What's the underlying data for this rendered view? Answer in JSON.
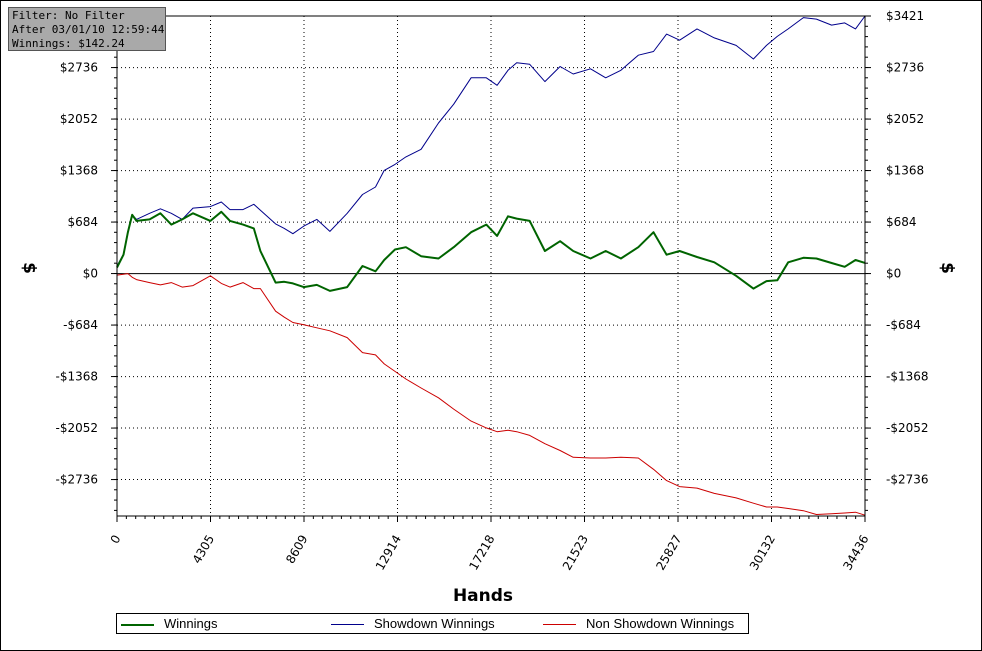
{
  "info_box": {
    "filter": "Filter: No Filter",
    "after": "After 03/01/10 12:59:44",
    "winnings": "Winnings: $142.24"
  },
  "chart_data": {
    "type": "line",
    "xlabel": "Hands",
    "ylabel_left": "$",
    "ylabel_right": "$",
    "xlim": [
      0,
      34436
    ],
    "ylim": [
      -3220,
      3421
    ],
    "x_ticks": [
      0,
      4305,
      8609,
      12914,
      17218,
      21523,
      25827,
      30132,
      34436
    ],
    "x_tick_labels": [
      "0",
      "4305",
      "8609",
      "12914",
      "17218",
      "21523",
      "25827",
      "30132",
      "34436"
    ],
    "y_ticks": [
      3421,
      2736,
      2052,
      1368,
      684,
      0,
      -684,
      -1368,
      -2052,
      -2736
    ],
    "y_tick_labels": [
      "$3421",
      "$2736",
      "$2052",
      "$1368",
      "$684",
      "$0",
      "-$684",
      "-$1368",
      "-$2052",
      "-$2736"
    ],
    "left_y_tick_labels_shown": [
      "$2736",
      "$2052",
      "$1368",
      "$684",
      "$0",
      "-$684",
      "-$1368",
      "-$2052",
      "-$2736"
    ],
    "grid": true,
    "legend_position": "bottom",
    "x": [
      0,
      300,
      500,
      700,
      900,
      1500,
      2000,
      2500,
      3000,
      3500,
      4300,
      4800,
      5200,
      5800,
      6300,
      6600,
      7300,
      7700,
      8100,
      8600,
      9200,
      9800,
      10600,
      11300,
      11900,
      12300,
      12800,
      13300,
      14000,
      14800,
      15500,
      16300,
      17000,
      17500,
      18000,
      18400,
      19000,
      19700,
      20400,
      21000,
      21800,
      22500,
      23200,
      24000,
      24700,
      25300,
      25900,
      26700,
      27500,
      28500,
      29300,
      29900,
      30400,
      30900,
      31600,
      32200,
      32900,
      33500,
      34000,
      34436
    ],
    "series": [
      {
        "name": "Winnings",
        "color": "#006400",
        "values": [
          80,
          250,
          550,
          780,
          700,
          720,
          800,
          650,
          720,
          800,
          700,
          820,
          700,
          650,
          600,
          300,
          -120,
          -110,
          -130,
          -180,
          -150,
          -230,
          -180,
          100,
          30,
          180,
          320,
          350,
          230,
          200,
          350,
          550,
          650,
          500,
          760,
          730,
          700,
          300,
          430,
          300,
          200,
          300,
          200,
          350,
          550,
          250,
          300,
          220,
          150,
          -30,
          -200,
          -100,
          -90,
          150,
          210,
          200,
          140,
          90,
          180,
          142.24
        ]
      },
      {
        "name": "Showdown Winnings",
        "color": "#00008b",
        "values": [
          100,
          260,
          560,
          780,
          720,
          800,
          860,
          800,
          720,
          870,
          890,
          950,
          850,
          850,
          920,
          840,
          660,
          600,
          530,
          630,
          720,
          560,
          800,
          1050,
          1150,
          1370,
          1450,
          1550,
          1650,
          2000,
          2250,
          2600,
          2600,
          2500,
          2700,
          2800,
          2780,
          2550,
          2750,
          2650,
          2720,
          2600,
          2700,
          2900,
          2950,
          3180,
          3100,
          3250,
          3130,
          3030,
          2850,
          3030,
          3150,
          3250,
          3400,
          3380,
          3300,
          3330,
          3250,
          3421
        ]
      },
      {
        "name": "Non Showdown Winnings",
        "color": "#cc0000",
        "values": [
          -20,
          -10,
          0,
          -50,
          -80,
          -120,
          -150,
          -120,
          -180,
          -160,
          -30,
          -130,
          -180,
          -120,
          -200,
          -200,
          -500,
          -580,
          -650,
          -680,
          -720,
          -760,
          -850,
          -1050,
          -1080,
          -1200,
          -1300,
          -1400,
          -1520,
          -1650,
          -1800,
          -1960,
          -2050,
          -2100,
          -2080,
          -2100,
          -2150,
          -2260,
          -2350,
          -2440,
          -2450,
          -2450,
          -2440,
          -2450,
          -2600,
          -2750,
          -2830,
          -2850,
          -2920,
          -2980,
          -3050,
          -3100,
          -3100,
          -3120,
          -3150,
          -3200,
          -3190,
          -3180,
          -3170,
          -3210
        ]
      }
    ]
  }
}
